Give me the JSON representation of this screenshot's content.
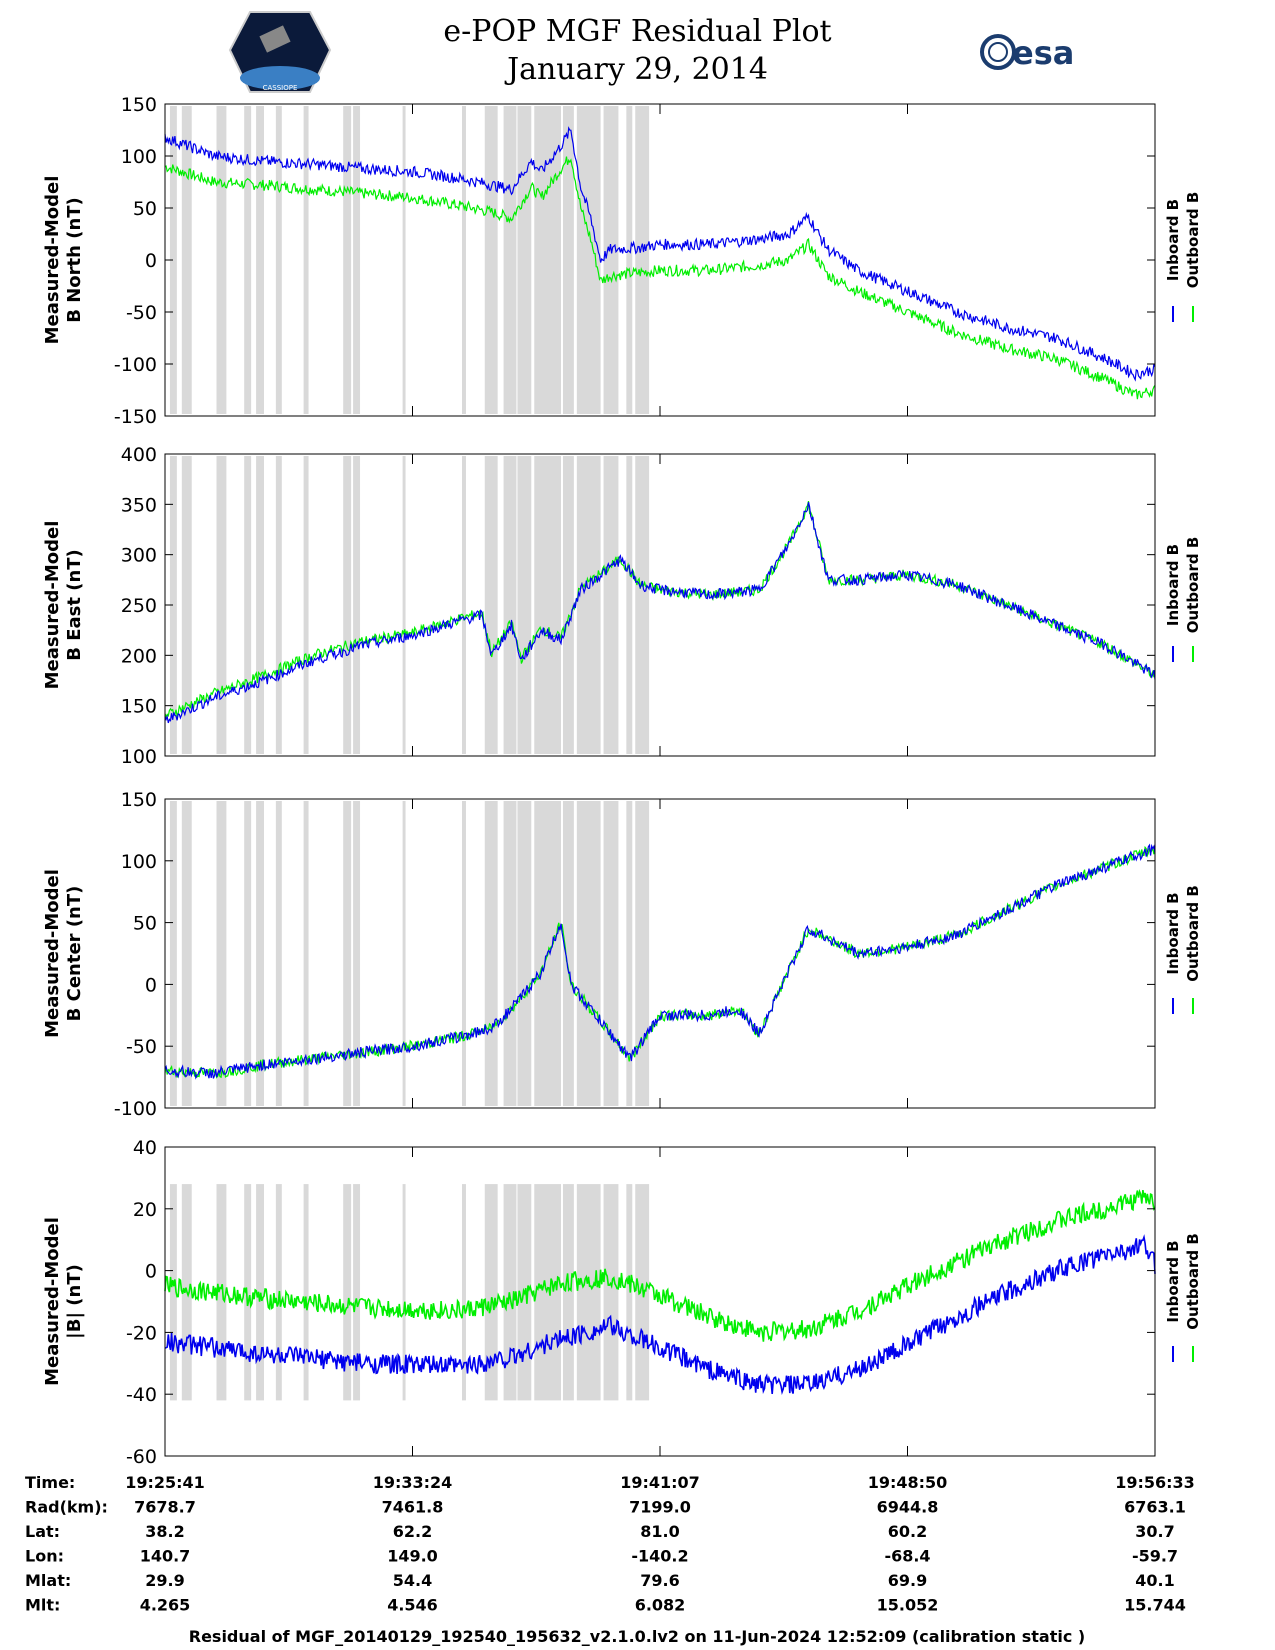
{
  "header": {
    "title_line1": "e-POP MGF Residual Plot",
    "title_line2": "January 29, 2014",
    "logo_right_text": "esa",
    "logo_left_text": "CASSIOPE"
  },
  "colors": {
    "inboard": "#0000ee",
    "outboard": "#00ee00",
    "shade": "#d9d9d9"
  },
  "chart_data": [
    {
      "type": "line",
      "title": "B North",
      "ylabel_line1": "Measured-Model",
      "ylabel_line2": "B North (nT)",
      "ylim": [
        -150,
        150
      ],
      "yticks": [
        "150",
        "100",
        "50",
        "0",
        "-50",
        "-100",
        "-150"
      ],
      "legend": [
        "Inboard B",
        "Outboard B"
      ],
      "x": [
        0,
        0.05,
        0.1,
        0.15,
        0.2,
        0.25,
        0.3,
        0.33,
        0.35,
        0.37,
        0.38,
        0.4,
        0.41,
        0.42,
        0.43,
        0.44,
        0.45,
        0.48,
        0.5,
        0.55,
        0.6,
        0.63,
        0.65,
        0.66,
        0.67,
        0.7,
        0.75,
        0.8,
        0.85,
        0.9,
        0.95,
        0.98,
        1.0
      ],
      "series": [
        {
          "name": "Inboard B",
          "values": [
            118,
            100,
            95,
            92,
            88,
            85,
            78,
            72,
            68,
            95,
            85,
            110,
            125,
            70,
            40,
            0,
            10,
            12,
            15,
            15,
            20,
            25,
            42,
            25,
            10,
            -10,
            -30,
            -50,
            -65,
            -75,
            -95,
            -110,
            -105
          ]
        },
        {
          "name": "Outboard B",
          "values": [
            90,
            75,
            72,
            68,
            64,
            60,
            52,
            46,
            40,
            70,
            60,
            88,
            100,
            50,
            20,
            -20,
            -15,
            -12,
            -10,
            -10,
            -5,
            0,
            15,
            0,
            -15,
            -30,
            -50,
            -70,
            -85,
            -95,
            -115,
            -130,
            -125
          ]
        }
      ]
    },
    {
      "type": "line",
      "title": "B East",
      "ylabel_line1": "Measured-Model",
      "ylabel_line2": "B East (nT)",
      "ylim": [
        100,
        400
      ],
      "yticks": [
        "400",
        "350",
        "300",
        "250",
        "200",
        "150",
        "100"
      ],
      "legend": [
        "Inboard B",
        "Outboard B"
      ],
      "x": [
        0,
        0.05,
        0.1,
        0.15,
        0.2,
        0.25,
        0.3,
        0.32,
        0.33,
        0.35,
        0.36,
        0.38,
        0.4,
        0.42,
        0.44,
        0.46,
        0.48,
        0.5,
        0.55,
        0.6,
        0.63,
        0.65,
        0.67,
        0.7,
        0.75,
        0.8,
        0.85,
        0.9,
        0.95,
        1.0
      ],
      "series": [
        {
          "name": "Inboard B",
          "values": [
            135,
            158,
            175,
            195,
            210,
            220,
            235,
            240,
            200,
            230,
            195,
            225,
            215,
            265,
            280,
            295,
            270,
            265,
            260,
            265,
            310,
            350,
            275,
            275,
            280,
            270,
            250,
            230,
            210,
            180
          ]
        },
        {
          "name": "Outboard B",
          "values": [
            140,
            162,
            180,
            200,
            214,
            222,
            237,
            242,
            202,
            232,
            197,
            227,
            217,
            267,
            281,
            296,
            270,
            265,
            260,
            265,
            310,
            350,
            275,
            275,
            280,
            270,
            250,
            230,
            210,
            180
          ]
        }
      ]
    },
    {
      "type": "line",
      "title": "B Center",
      "ylabel_line1": "Measured-Model",
      "ylabel_line2": "B Center (nT)",
      "ylim": [
        -100,
        150
      ],
      "yticks": [
        "150",
        "100",
        "50",
        "0",
        "-50",
        "-100"
      ],
      "legend": [
        "Inboard B",
        "Outboard B"
      ],
      "x": [
        0,
        0.05,
        0.1,
        0.15,
        0.2,
        0.25,
        0.3,
        0.33,
        0.35,
        0.38,
        0.4,
        0.41,
        0.43,
        0.45,
        0.47,
        0.5,
        0.55,
        0.58,
        0.6,
        0.65,
        0.7,
        0.75,
        0.8,
        0.85,
        0.9,
        0.95,
        1.0
      ],
      "series": [
        {
          "name": "Inboard B",
          "values": [
            -70,
            -72,
            -65,
            -60,
            -55,
            -50,
            -42,
            -35,
            -20,
            10,
            50,
            0,
            -20,
            -40,
            -60,
            -25,
            -25,
            -20,
            -40,
            45,
            25,
            30,
            40,
            60,
            80,
            95,
            110
          ]
        },
        {
          "name": "Outboard B",
          "values": [
            -70,
            -72,
            -65,
            -60,
            -55,
            -50,
            -42,
            -35,
            -20,
            10,
            50,
            0,
            -20,
            -40,
            -60,
            -25,
            -25,
            -20,
            -40,
            45,
            25,
            30,
            40,
            60,
            80,
            95,
            110
          ]
        }
      ]
    },
    {
      "type": "line",
      "title": "|B|",
      "ylabel_line1": "Measured-Model",
      "ylabel_line2": "|B| (nT)",
      "ylim": [
        -60,
        40
      ],
      "yticks": [
        "40",
        "20",
        "0",
        "-20",
        "-40",
        "-60"
      ],
      "legend": [
        "Inboard B",
        "Outboard B"
      ],
      "x": [
        0,
        0.1,
        0.2,
        0.3,
        0.35,
        0.4,
        0.45,
        0.5,
        0.55,
        0.6,
        0.65,
        0.7,
        0.75,
        0.8,
        0.85,
        0.9,
        0.95,
        0.99,
        1.0
      ],
      "series": [
        {
          "name": "Inboard B",
          "values": [
            -23,
            -27,
            -30,
            -31,
            -28,
            -22,
            -18,
            -25,
            -32,
            -37,
            -37,
            -32,
            -24,
            -15,
            -7,
            0,
            5,
            8,
            2
          ]
        },
        {
          "name": "Outboard B",
          "values": [
            -5,
            -9,
            -12,
            -13,
            -10,
            -4,
            -2,
            -8,
            -15,
            -20,
            -19,
            -13,
            -5,
            3,
            10,
            16,
            20,
            24,
            22
          ]
        }
      ]
    }
  ],
  "x_axis": {
    "tick_labels": [
      "19:25:41",
      "19:33:24",
      "19:41:07",
      "19:48:50",
      "19:56:33"
    ]
  },
  "ephemeris": {
    "rows": [
      {
        "label": "Time:",
        "values": [
          "19:25:41",
          "19:33:24",
          "19:41:07",
          "19:48:50",
          "19:56:33"
        ]
      },
      {
        "label": "Rad(km):",
        "values": [
          "7678.7",
          "7461.8",
          "7199.0",
          "6944.8",
          "6763.1"
        ]
      },
      {
        "label": "Lat:",
        "values": [
          "38.2",
          "62.2",
          "81.0",
          "60.2",
          "30.7"
        ]
      },
      {
        "label": "Lon:",
        "values": [
          "140.7",
          "149.0",
          "-140.2",
          "-68.4",
          "-59.7"
        ]
      },
      {
        "label": "Mlat:",
        "values": [
          "29.9",
          "54.4",
          "79.6",
          "69.9",
          "40.1"
        ]
      },
      {
        "label": "Mlt:",
        "values": [
          "4.265",
          "4.546",
          "6.082",
          "15.052",
          "15.744"
        ]
      }
    ]
  },
  "footer": {
    "text": "Residual of MGF_20140129_192540_195632_v2.1.0.lv2 on 11-Jun-2024 12:52:09 (calibration static )"
  }
}
